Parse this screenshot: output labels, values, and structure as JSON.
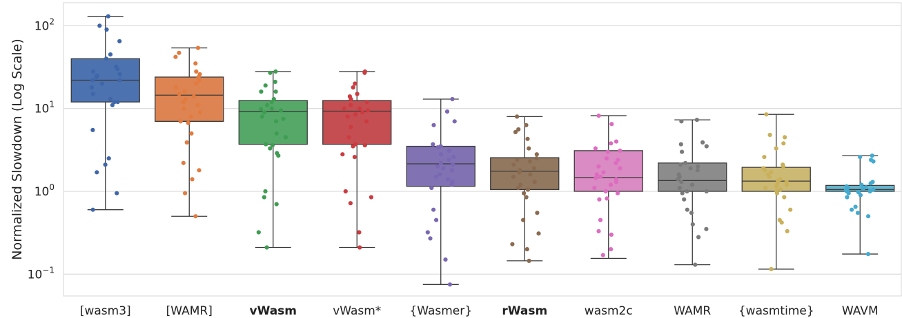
{
  "chart_data": {
    "type": "box",
    "ylabel": "Normalized Slowdown (Log Scale)",
    "yscale": "log",
    "ylim": [
      0.05,
      200
    ],
    "yticks": [
      {
        "value": 0.1,
        "base": "10",
        "exp": "−1"
      },
      {
        "value": 1,
        "base": "10",
        "exp": "0"
      },
      {
        "value": 10,
        "base": "10",
        "exp": "1"
      },
      {
        "value": 100,
        "base": "10",
        "exp": "2"
      }
    ],
    "grid": "horizontal",
    "categories": [
      {
        "label": "[wasm3]",
        "bold": false
      },
      {
        "label": "[WAMR]",
        "bold": false
      },
      {
        "label": "vWasm",
        "bold": true
      },
      {
        "label": "vWasm*",
        "bold": false
      },
      {
        "label": "{Wasmer}",
        "bold": false
      },
      {
        "label": "rWasm",
        "bold": true
      },
      {
        "label": "wasm2c",
        "bold": false
      },
      {
        "label": "WAMR",
        "bold": false
      },
      {
        "label": "{wasmtime}",
        "bold": false
      },
      {
        "label": "WAVM",
        "bold": false
      }
    ],
    "series": [
      {
        "color": "#4c72b0",
        "dot_color": "#3f66a8",
        "min": 0.6,
        "q1": 12,
        "median": 22,
        "q3": 40,
        "max": 130,
        "points": [
          130,
          100,
          90,
          65,
          45,
          40,
          32,
          30,
          28,
          26,
          25,
          24,
          22,
          22,
          20,
          18,
          15,
          13,
          12,
          12,
          11,
          5.5,
          2.5,
          2.1,
          1.7,
          0.95,
          0.6
        ]
      },
      {
        "color": "#dd8452",
        "dot_color": "#e27b3f",
        "min": 0.5,
        "q1": 7,
        "median": 14.5,
        "q3": 24,
        "max": 54,
        "points": [
          54,
          47,
          42,
          35,
          28,
          26,
          24,
          22,
          20,
          18,
          16,
          15,
          14,
          13,
          12,
          11,
          10,
          9,
          8,
          7,
          6.7,
          5,
          3.9,
          2.2,
          1.8,
          1.4,
          0.95,
          0.5
        ]
      },
      {
        "color": "#55a868",
        "dot_color": "#3f9d52",
        "min": 0.21,
        "q1": 3.7,
        "median": 9.2,
        "q3": 12.5,
        "max": 28,
        "points": [
          28,
          27,
          21,
          19,
          16,
          16,
          13,
          12,
          11,
          10,
          9.8,
          9.5,
          9,
          8,
          7.5,
          7,
          5,
          4.5,
          3.7,
          3.6,
          3.3,
          2.9,
          2.7,
          1.0,
          0.85,
          0.7,
          0.32,
          0.21
        ]
      },
      {
        "color": "#c44e52",
        "dot_color": "#cc3b3f",
        "min": 0.21,
        "q1": 3.7,
        "median": 9.3,
        "q3": 12.5,
        "max": 28,
        "points": [
          28,
          27,
          20,
          18,
          15,
          14,
          13,
          12,
          11,
          10,
          10,
          9.5,
          9,
          8.5,
          8,
          7,
          6,
          4.5,
          3.7,
          3.6,
          3.5,
          2.8,
          2.6,
          1.0,
          0.85,
          0.72,
          0.32,
          0.21
        ]
      },
      {
        "color": "#8172b3",
        "dot_color": "#7a68b3",
        "min": 0.075,
        "q1": 1.15,
        "median": 2.15,
        "q3": 3.5,
        "max": 13,
        "points": [
          13,
          9.2,
          7,
          6.3,
          3.7,
          3.5,
          3.4,
          3.1,
          2.8,
          2.6,
          2.4,
          2.2,
          2.1,
          2.0,
          1.9,
          1.8,
          1.6,
          1.5,
          1.4,
          1.3,
          1.2,
          1.1,
          0.6,
          0.45,
          0.32,
          0.27,
          0.15,
          0.075
        ]
      },
      {
        "color": "#937860",
        "dot_color": "#8a6a50",
        "min": 0.145,
        "q1": 1.05,
        "median": 1.75,
        "q3": 2.55,
        "max": 8,
        "points": [
          8,
          6.3,
          5.6,
          5.2,
          4.3,
          3.3,
          2.8,
          2.5,
          2.4,
          2.3,
          2.1,
          1.9,
          1.8,
          1.7,
          1.6,
          1.5,
          1.3,
          1.2,
          1.1,
          1.05,
          0.95,
          0.85,
          0.55,
          0.45,
          0.31,
          0.23,
          0.2,
          0.145
        ]
      },
      {
        "color": "#da8bc3",
        "dot_color": "#dd6cc0",
        "min": 0.155,
        "q1": 1.0,
        "median": 1.47,
        "q3": 3.1,
        "max": 8.2,
        "points": [
          8.2,
          6.5,
          4.0,
          3.8,
          3.3,
          3.1,
          3.0,
          2.5,
          2.4,
          2.2,
          2.0,
          1.9,
          1.7,
          1.6,
          1.5,
          1.45,
          1.4,
          1.3,
          1.2,
          1.1,
          1.0,
          0.95,
          0.82,
          0.8,
          0.45,
          0.33,
          0.3,
          0.2,
          0.17
        ]
      },
      {
        "color": "#8c8c8c",
        "dot_color": "#7a7a7a",
        "min": 0.13,
        "q1": 1.0,
        "median": 1.35,
        "q3": 2.2,
        "max": 7.3,
        "points": [
          7.3,
          7.0,
          3.9,
          3.7,
          3.5,
          3.0,
          2.2,
          2.1,
          2.0,
          1.9,
          1.8,
          1.6,
          1.5,
          1.4,
          1.3,
          1.2,
          1.1,
          1.0,
          1.0,
          0.95,
          0.8,
          0.6,
          0.55,
          0.4,
          0.35,
          0.28,
          0.13
        ]
      },
      {
        "color": "#ccb974",
        "dot_color": "#c9b05a",
        "min": 0.115,
        "q1": 1.0,
        "median": 1.33,
        "q3": 1.95,
        "max": 8.5,
        "points": [
          8.5,
          4.8,
          4.5,
          3.8,
          3.3,
          2.6,
          2.1,
          2.0,
          1.9,
          1.8,
          1.7,
          1.6,
          1.5,
          1.4,
          1.35,
          1.3,
          1.25,
          1.2,
          1.15,
          1.1,
          1.05,
          1.0,
          0.95,
          0.85,
          0.6,
          0.45,
          0.42,
          0.33,
          0.115
        ]
      },
      {
        "color": "#64b5cd",
        "dot_color": "#44aacf",
        "min": 0.175,
        "q1": 1.0,
        "median": 1.05,
        "q3": 1.18,
        "max": 2.7,
        "points": [
          2.7,
          2.6,
          2.4,
          2.3,
          1.3,
          1.25,
          1.2,
          1.15,
          1.12,
          1.1,
          1.08,
          1.06,
          1.05,
          1.03,
          1.02,
          1.0,
          1.0,
          0.98,
          0.95,
          0.9,
          0.85,
          0.65,
          0.6,
          0.55,
          0.5,
          0.175
        ]
      }
    ]
  }
}
